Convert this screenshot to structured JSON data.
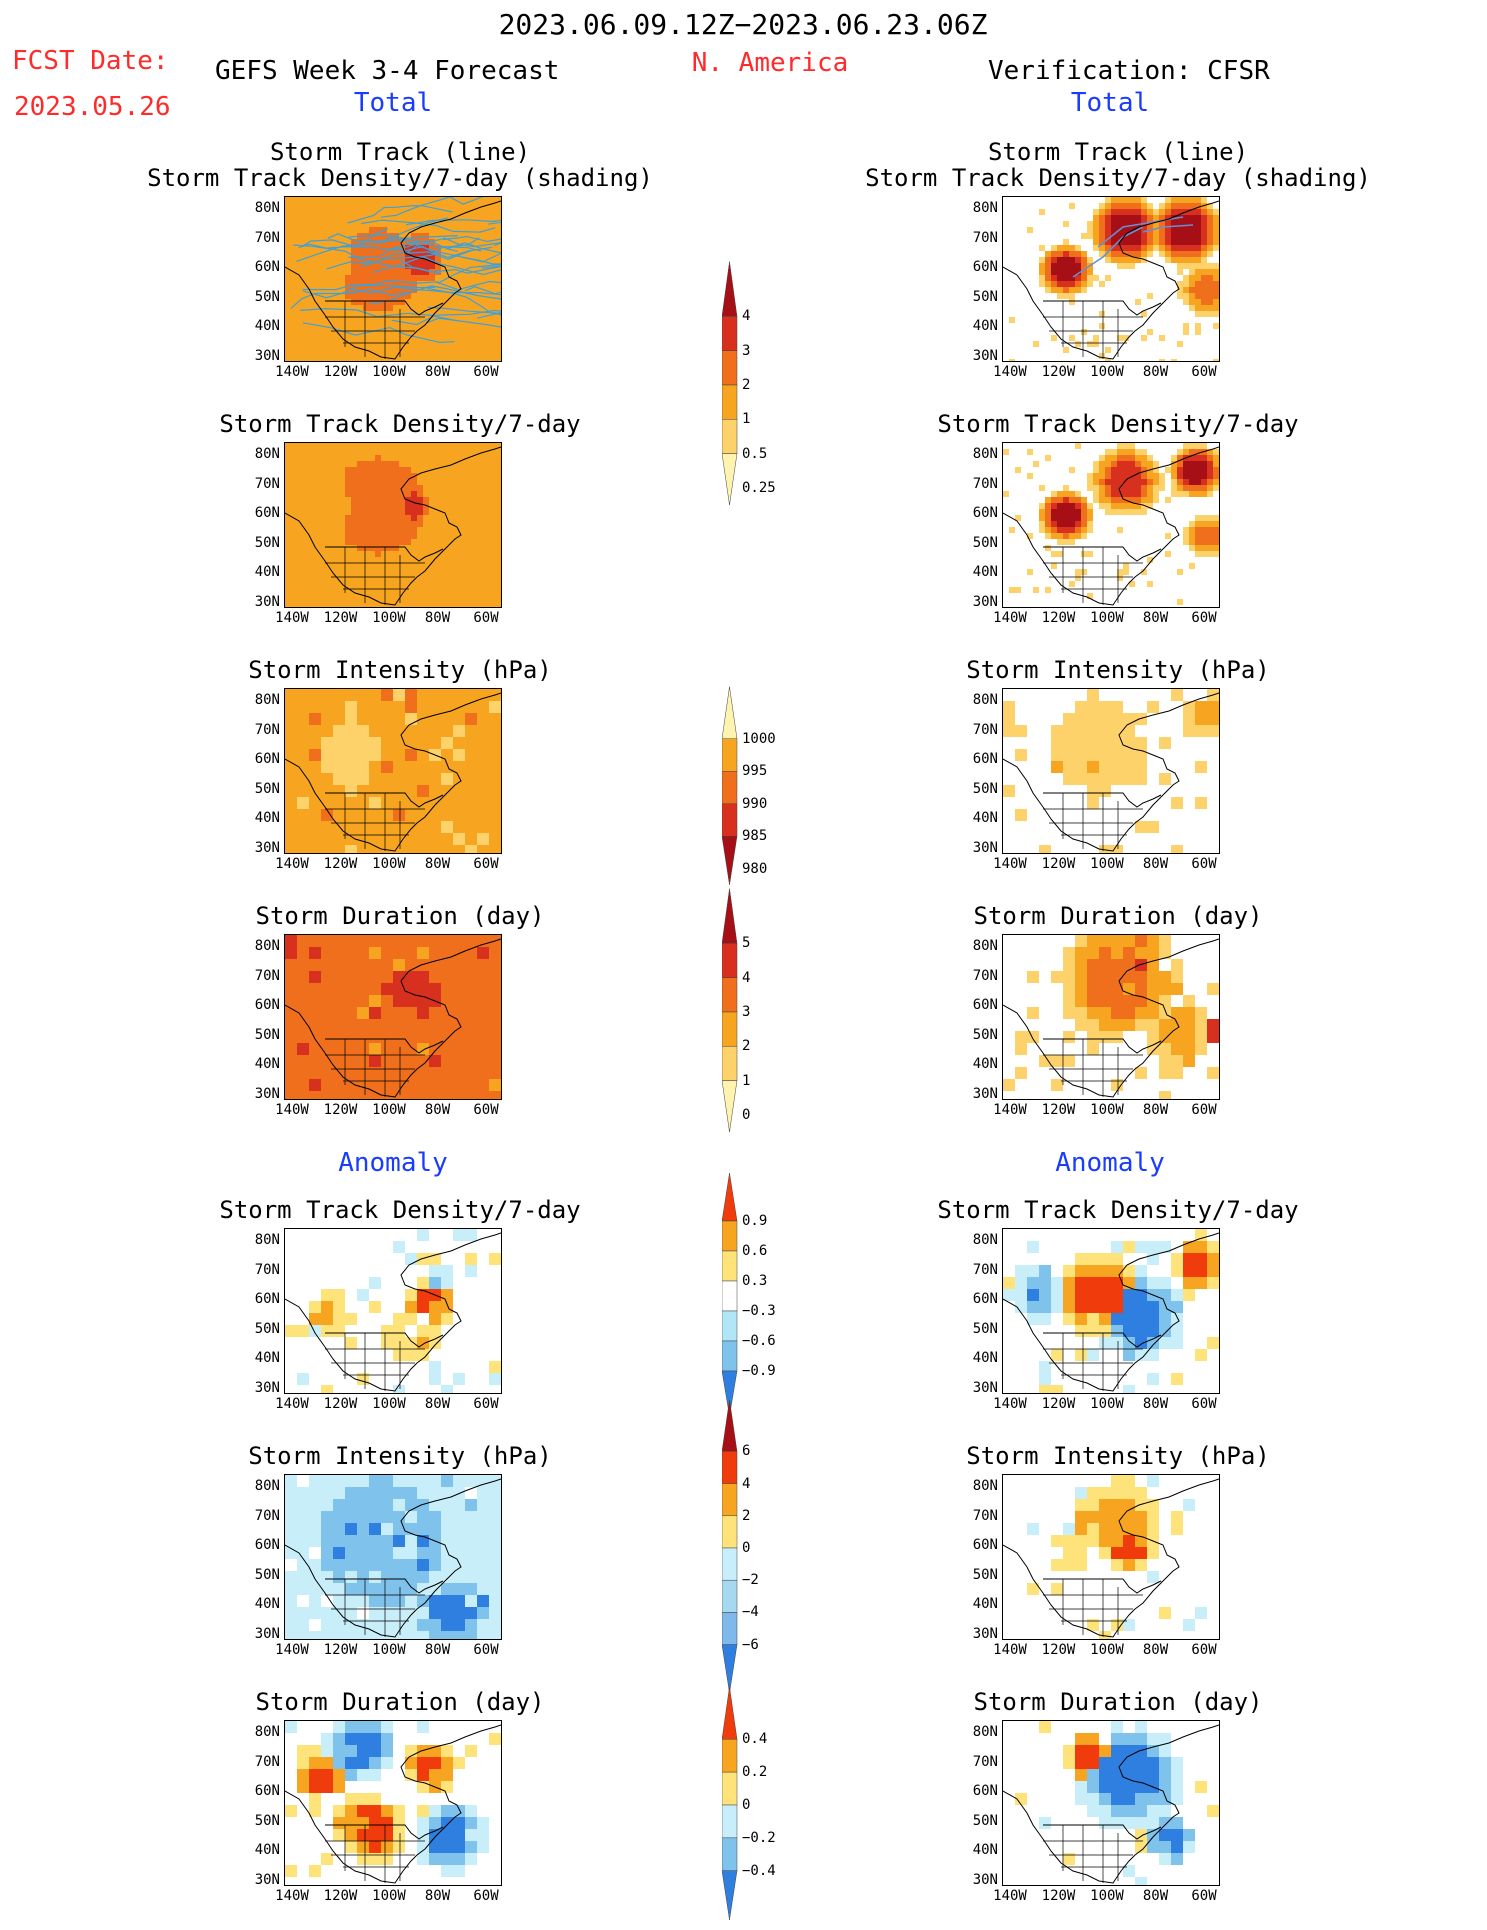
{
  "header": {
    "date_range": "2023.06.09.12Z−2023.06.23.06Z",
    "region": "N. America",
    "fcst_label": "FCST Date:",
    "fcst_date": "2023.05.26",
    "left_title": "GEFS Week 3-4 Forecast",
    "right_title": "Verification: CFSR",
    "total_label": "Total",
    "anomaly_label": "Anomaly"
  },
  "axes": {
    "lat_ticks": [
      "80N",
      "70N",
      "60N",
      "50N",
      "40N",
      "30N"
    ],
    "lon_ticks": [
      "140W",
      "120W",
      "100W",
      "80W",
      "60W"
    ]
  },
  "panels": [
    {
      "key": "p1",
      "title1": "Storm Track (line)",
      "title2": "Storm Track Density/7-day (shading)"
    },
    {
      "key": "p2",
      "title1": "Storm Track Density/7-day",
      "title2": ""
    },
    {
      "key": "p3",
      "title1": "Storm Intensity (hPa)",
      "title2": ""
    },
    {
      "key": "p4",
      "title1": "Storm Duration (day)",
      "title2": ""
    },
    {
      "key": "p5",
      "title1": "Storm Track Density/7-day",
      "title2": ""
    },
    {
      "key": "p6",
      "title1": "Storm Intensity (hPa)",
      "title2": ""
    },
    {
      "key": "p7",
      "title1": "Storm Duration (day)",
      "title2": ""
    }
  ],
  "colorbars": [
    {
      "name": "density",
      "ticks": [
        "4",
        "3",
        "2",
        "1",
        "0.5",
        "0.25"
      ],
      "colors": [
        "#a50f15",
        "#d7301f",
        "#ef6f1c",
        "#f7a520",
        "#fdd26b",
        "#fff3b0"
      ],
      "direction": "up"
    },
    {
      "name": "intensity",
      "ticks": [
        "1000",
        "995",
        "990",
        "985",
        "980"
      ],
      "colors": [
        "#fff3b0",
        "#f7a520",
        "#ef6f1c",
        "#d7301f",
        "#a50f15"
      ],
      "direction": "down"
    },
    {
      "name": "duration",
      "ticks": [
        "5",
        "4",
        "3",
        "2",
        "1",
        "0"
      ],
      "colors": [
        "#a50f15",
        "#d7301f",
        "#ef6f1c",
        "#f7a520",
        "#fdd26b",
        "#fff3b0"
      ],
      "direction": "up"
    },
    {
      "name": "density_anom",
      "ticks": [
        "0.9",
        "0.6",
        "0.3",
        "−0.3",
        "−0.6",
        "−0.9"
      ],
      "colors": [
        "#f03c0c",
        "#f7a520",
        "#fde37a",
        "#ffffff",
        "#b0e6f5",
        "#7fc3ec",
        "#2f7fe0"
      ],
      "direction": "both"
    },
    {
      "name": "intensity_anom",
      "ticks": [
        "6",
        "4",
        "2",
        "0",
        "−2",
        "−4",
        "−6"
      ],
      "colors": [
        "#a50f15",
        "#f03c0c",
        "#f7a520",
        "#fde37a",
        "#c8eefa",
        "#a6d8f0",
        "#7fb8ea",
        "#2f7fe0"
      ],
      "direction": "both"
    },
    {
      "name": "duration_anom",
      "ticks": [
        "0.4",
        "0.2",
        "0",
        "−0.2",
        "−0.4"
      ],
      "colors": [
        "#f03c0c",
        "#f7a520",
        "#fde37a",
        "#c8eefa",
        "#7fc3ec",
        "#2f7fe0"
      ],
      "direction": "both"
    }
  ],
  "colors": {
    "red_text": "#ff2a2a",
    "blue_text": "#1a3cff",
    "track_line": "#3fa0d8",
    "obs_track": "#6a8fd0"
  }
}
